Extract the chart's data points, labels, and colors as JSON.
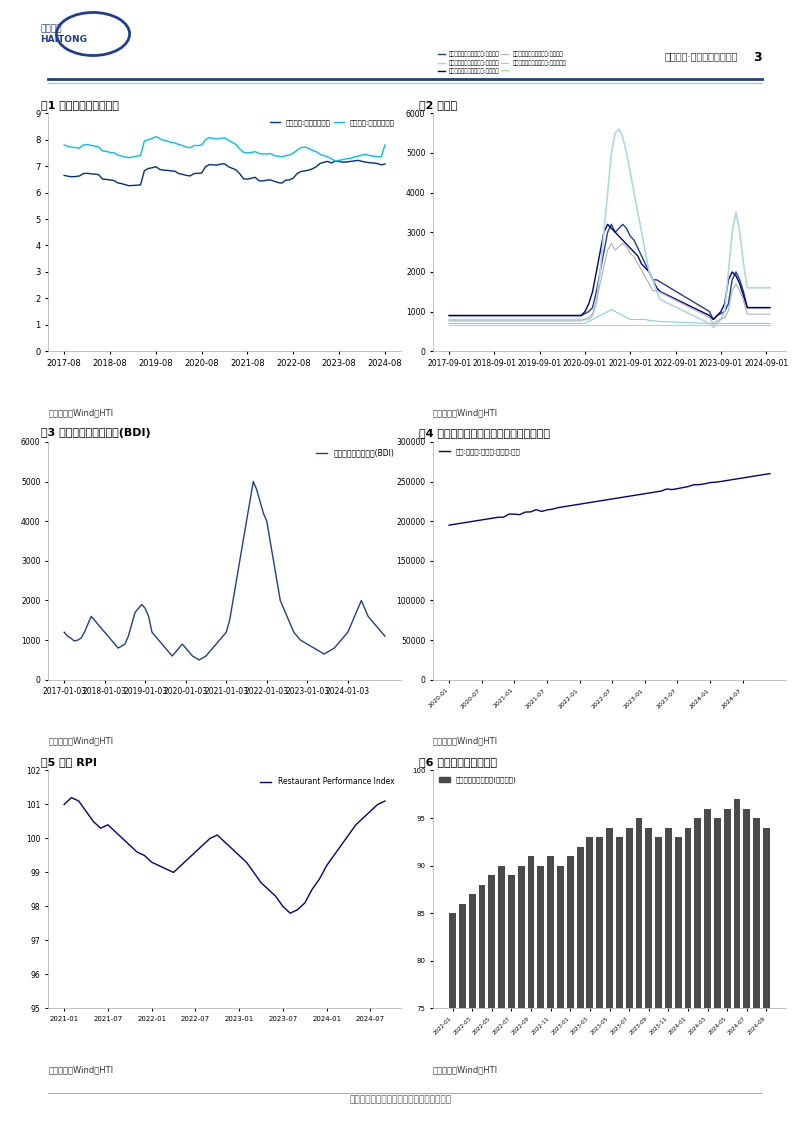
{
  "page_title": "行业研究·其他专用机械行业",
  "page_number": "3",
  "fig1_title": "图1 美元、欧元即期汇率",
  "fig1_legend": [
    "即期汇率:美元兑人民币",
    "即期汇率:欧元兑人民币"
  ],
  "fig1_colors": [
    "#003087",
    "#00BFFF"
  ],
  "fig1_ylim": [
    0,
    9
  ],
  "fig1_yticks": [
    0,
    1,
    2,
    3,
    4,
    5,
    6,
    7,
    8,
    9
  ],
  "fig1_source": "资料来源：Wind、HTI",
  "fig2_title": "图2 海运费",
  "fig2_legends": [
    "中国出口集装箱运价指数:综合指数",
    "中国出口集装箱运价指数:美东航线",
    "中国出口集装箱运价指数:东南亚航线",
    "中国出口集装箱运价指数:欧洲航线",
    "中国出口集装箱运价指数:美西航线",
    ""
  ],
  "fig2_colors": [
    "#1F3F8F",
    "#00008B",
    "#87CEEB",
    "#87CEEB",
    "#C0C0C0",
    "#90EE90"
  ],
  "fig2_ylim": [
    0,
    6000
  ],
  "fig2_yticks": [
    0,
    1000,
    2000,
    3000,
    4000,
    5000,
    6000
  ],
  "fig2_source": "资料来源：Wind、HTI",
  "fig3_title": "图3 波罗的海干散货指数(BDI)",
  "fig3_legend": "波罗的海干散货指数(BDI)",
  "fig3_color": "#1F3F8F",
  "fig3_ylim": [
    0,
    6000
  ],
  "fig3_yticks": [
    0,
    1000,
    2000,
    3000,
    4000,
    5000,
    6000
  ],
  "fig3_source": "资料来源：Wind、HTI",
  "fig4_title": "图4 美国制造业消费品存货量（百万美元）",
  "fig4_legend": "美国:制造业:存货量:消费品:季调",
  "fig4_color": "#00008B",
  "fig4_ylim": [
    0,
    300000
  ],
  "fig4_yticks": [
    0,
    50000,
    100000,
    150000,
    200000,
    250000,
    300000
  ],
  "fig4_source": "资料来源：Wind、HTI",
  "fig5_title": "图5 美国 RPI",
  "fig5_legend": "Restaurant Performance Index",
  "fig5_color": "#00008B",
  "fig5_ylim": [
    95,
    102
  ],
  "fig5_yticks": [
    95,
    96,
    97,
    98,
    99,
    100,
    101,
    102
  ],
  "fig5_source": "资料来源：Wind、HTI",
  "fig6_title": "图6 美国餐饮场所销售额",
  "fig6_legend": "美国餐饮场所销售额(十亿美元)",
  "fig6_color": "#4A4A4A",
  "fig6_ylim": [
    75,
    100
  ],
  "fig6_yticks": [
    75,
    80,
    85,
    90,
    95,
    100
  ],
  "fig6_source": "资料来源：Wind、HTI",
  "footer": "请务必阅读正文之后的信息披露和法律声明",
  "bg_color": "#FFFFFF",
  "header_line_color": "#1F3F8F",
  "section_line_color": "#CCCCCC"
}
